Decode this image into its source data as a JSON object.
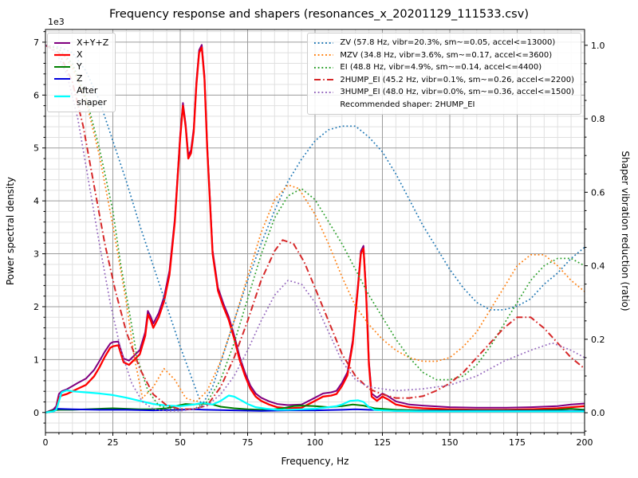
{
  "title": "Frequency response and shapers (resonances_x_20201129_111533.csv)",
  "chart_data": {
    "type": "line",
    "title": "Frequency response and shapers (resonances_x_20201129_111533.csv)",
    "xlabel": "Frequency, Hz",
    "ylabel_left": "Power spectral density",
    "ylabel_right": "Shaper vibration reduction (ratio)",
    "y_left_offset_text": "1e3",
    "xlim": [
      0,
      200
    ],
    "ylim_left": [
      -0.38,
      7.24
    ],
    "ylim_right": [
      -0.054,
      1.043
    ],
    "x_major_ticks": [
      0,
      25,
      50,
      75,
      100,
      125,
      150,
      175,
      200
    ],
    "x_minor_step": 5,
    "y_left_major_ticks": [
      0,
      1,
      2,
      3,
      4,
      5,
      6,
      7
    ],
    "y_left_minor_step": 0.2,
    "y_right_major_ticks": [
      "0.0",
      "0.2",
      "0.4",
      "0.6",
      "0.8",
      "1.0"
    ],
    "y_right_minor_step": 0.05,
    "grid": "major+minor on left axis",
    "legend_left_position": "upper left",
    "legend_right_position": "upper right",
    "recommended_note": "Recommended shaper: 2HUMP_EI",
    "series": [
      {
        "name": "X+Y+Z",
        "axis": "left",
        "color": "#800080",
        "style": "solid",
        "width": 2,
        "x": [
          0,
          3,
          4,
          5,
          6,
          8,
          10,
          12,
          15,
          18,
          20,
          22,
          24,
          25,
          27,
          29,
          31,
          33,
          35,
          37,
          38,
          39,
          40,
          42,
          44,
          46,
          48,
          50,
          51,
          52,
          53,
          54,
          55,
          56,
          57,
          58,
          59,
          60,
          61,
          62,
          64,
          66,
          68,
          70,
          72,
          74,
          76,
          78,
          80,
          83,
          86,
          90,
          95,
          100,
          103,
          106,
          108,
          110,
          112,
          114,
          116,
          117,
          118,
          119,
          120,
          121,
          123,
          125,
          127,
          130,
          135,
          140,
          150,
          160,
          170,
          180,
          190,
          195,
          200
        ],
        "y": [
          0,
          0.06,
          0.12,
          0.35,
          0.4,
          0.44,
          0.5,
          0.56,
          0.64,
          0.8,
          0.97,
          1.15,
          1.3,
          1.33,
          1.34,
          1.02,
          0.98,
          1.08,
          1.18,
          1.52,
          1.92,
          1.82,
          1.68,
          1.88,
          2.18,
          2.68,
          3.66,
          5.26,
          5.85,
          5.45,
          4.86,
          4.96,
          5.36,
          6.26,
          6.85,
          6.95,
          6.36,
          5.06,
          4.06,
          3.06,
          2.36,
          2.06,
          1.81,
          1.46,
          1.06,
          0.76,
          0.51,
          0.36,
          0.28,
          0.21,
          0.16,
          0.14,
          0.15,
          0.28,
          0.36,
          0.38,
          0.41,
          0.56,
          0.76,
          1.36,
          2.45,
          3.05,
          3.15,
          2.26,
          0.96,
          0.36,
          0.28,
          0.36,
          0.31,
          0.21,
          0.15,
          0.13,
          0.1,
          0.09,
          0.09,
          0.1,
          0.12,
          0.15,
          0.17
        ]
      },
      {
        "name": "X",
        "axis": "left",
        "color": "#ff0000",
        "style": "solid",
        "width": 2.3,
        "x": [
          0,
          3,
          4,
          5,
          6,
          8,
          10,
          12,
          15,
          18,
          20,
          22,
          24,
          25,
          27,
          29,
          31,
          33,
          35,
          37,
          38,
          39,
          40,
          42,
          44,
          46,
          48,
          50,
          51,
          52,
          53,
          54,
          55,
          56,
          57,
          58,
          59,
          60,
          61,
          62,
          64,
          66,
          68,
          70,
          72,
          74,
          76,
          78,
          80,
          83,
          86,
          90,
          95,
          100,
          103,
          106,
          108,
          110,
          112,
          114,
          116,
          117,
          118,
          119,
          120,
          121,
          123,
          125,
          127,
          130,
          135,
          140,
          150,
          160,
          170,
          180,
          190,
          195,
          200
        ],
        "y": [
          0,
          0.02,
          0.05,
          0.28,
          0.32,
          0.35,
          0.4,
          0.45,
          0.52,
          0.68,
          0.85,
          1.05,
          1.22,
          1.25,
          1.27,
          0.95,
          0.9,
          1.0,
          1.1,
          1.45,
          1.85,
          1.75,
          1.6,
          1.8,
          2.1,
          2.6,
          3.6,
          5.2,
          5.8,
          5.4,
          4.8,
          4.9,
          5.3,
          6.2,
          6.8,
          6.9,
          6.3,
          5.0,
          4.0,
          3.0,
          2.3,
          2.0,
          1.75,
          1.4,
          1.0,
          0.7,
          0.45,
          0.3,
          0.22,
          0.15,
          0.1,
          0.08,
          0.09,
          0.22,
          0.3,
          0.32,
          0.35,
          0.5,
          0.7,
          1.3,
          2.4,
          3.0,
          3.1,
          2.2,
          0.9,
          0.3,
          0.22,
          0.3,
          0.25,
          0.15,
          0.1,
          0.08,
          0.06,
          0.05,
          0.05,
          0.06,
          0.08,
          0.1,
          0.12
        ]
      },
      {
        "name": "Y",
        "axis": "left",
        "color": "#008000",
        "style": "solid",
        "width": 2,
        "x": [
          0,
          3,
          5,
          10,
          15,
          20,
          25,
          30,
          35,
          40,
          45,
          48,
          52,
          55,
          58,
          62,
          65,
          70,
          75,
          80,
          85,
          88,
          92,
          95,
          100,
          105,
          110,
          114,
          118,
          122,
          130,
          140,
          150,
          160,
          170,
          180,
          190,
          195,
          200
        ],
        "y": [
          0,
          0.04,
          0.05,
          0.05,
          0.06,
          0.07,
          0.08,
          0.07,
          0.06,
          0.06,
          0.08,
          0.12,
          0.16,
          0.15,
          0.17,
          0.15,
          0.11,
          0.08,
          0.06,
          0.05,
          0.06,
          0.08,
          0.12,
          0.13,
          0.12,
          0.1,
          0.12,
          0.15,
          0.13,
          0.08,
          0.05,
          0.04,
          0.04,
          0.04,
          0.04,
          0.04,
          0.05,
          0.07,
          0.05
        ]
      },
      {
        "name": "Z",
        "axis": "left",
        "color": "#0000dd",
        "style": "solid",
        "width": 2,
        "x": [
          0,
          3,
          4,
          10,
          20,
          30,
          40,
          50,
          55,
          60,
          70,
          80,
          90,
          100,
          110,
          115,
          120,
          130,
          140,
          150,
          160,
          170,
          180,
          190,
          200
        ],
        "y": [
          0,
          0.02,
          0.07,
          0.06,
          0.05,
          0.05,
          0.04,
          0.05,
          0.06,
          0.05,
          0.04,
          0.03,
          0.04,
          0.04,
          0.05,
          0.06,
          0.05,
          0.03,
          0.03,
          0.03,
          0.03,
          0.03,
          0.03,
          0.03,
          0.03
        ]
      },
      {
        "name": "After shaper",
        "axis": "left",
        "color": "#00ffff",
        "style": "solid",
        "width": 2.2,
        "x": [
          0,
          3,
          4,
          6,
          8,
          10,
          15,
          20,
          25,
          30,
          35,
          40,
          45,
          50,
          55,
          58,
          60,
          62,
          65,
          68,
          70,
          73,
          75,
          78,
          82,
          86,
          90,
          95,
          100,
          105,
          108,
          110,
          113,
          116,
          118,
          120,
          122,
          125,
          130,
          140,
          150,
          160,
          170,
          180,
          190,
          200
        ],
        "y": [
          0,
          0.02,
          0.05,
          0.38,
          0.42,
          0.4,
          0.38,
          0.36,
          0.33,
          0.28,
          0.22,
          0.16,
          0.13,
          0.12,
          0.15,
          0.18,
          0.17,
          0.15,
          0.22,
          0.32,
          0.3,
          0.22,
          0.16,
          0.1,
          0.07,
          0.05,
          0.05,
          0.06,
          0.07,
          0.1,
          0.12,
          0.15,
          0.22,
          0.23,
          0.2,
          0.1,
          0.05,
          0.04,
          0.03,
          0.02,
          0.02,
          0.02,
          0.02,
          0.02,
          0.02,
          0.02
        ]
      },
      {
        "name": "ZV",
        "axis": "right",
        "color": "#1f77b4",
        "style": "dotted",
        "width": 1.7,
        "x": [
          0,
          5,
          10,
          15,
          20,
          25,
          30,
          35,
          40,
          45,
          50,
          54,
          58,
          62,
          66,
          70,
          75,
          80,
          85,
          90,
          95,
          100,
          105,
          110,
          115,
          120,
          125,
          130,
          135,
          140,
          145,
          150,
          155,
          160,
          165,
          170,
          175,
          180,
          185,
          190,
          195,
          200
        ],
        "y": [
          1.0,
          0.995,
          0.98,
          0.93,
          0.85,
          0.74,
          0.63,
          0.51,
          0.4,
          0.29,
          0.18,
          0.1,
          0.02,
          0.07,
          0.16,
          0.25,
          0.36,
          0.46,
          0.55,
          0.63,
          0.69,
          0.74,
          0.77,
          0.78,
          0.78,
          0.75,
          0.71,
          0.65,
          0.58,
          0.51,
          0.45,
          0.39,
          0.34,
          0.3,
          0.28,
          0.28,
          0.29,
          0.31,
          0.35,
          0.38,
          0.42,
          0.45
        ]
      },
      {
        "name": "MZV",
        "axis": "right",
        "color": "#ff7f0e",
        "style": "dotted",
        "width": 1.7,
        "x": [
          0,
          5,
          10,
          15,
          20,
          25,
          30,
          33,
          36,
          40,
          44,
          48,
          52,
          56,
          60,
          65,
          70,
          75,
          80,
          85,
          90,
          94,
          100,
          105,
          110,
          115,
          120,
          125,
          130,
          135,
          140,
          145,
          150,
          155,
          160,
          165,
          170,
          175,
          180,
          185,
          190,
          195,
          200
        ],
        "y": [
          1.0,
          0.99,
          0.94,
          0.85,
          0.7,
          0.51,
          0.3,
          0.15,
          0.04,
          0.07,
          0.12,
          0.09,
          0.04,
          0.03,
          0.06,
          0.14,
          0.25,
          0.37,
          0.49,
          0.58,
          0.62,
          0.61,
          0.54,
          0.46,
          0.37,
          0.29,
          0.24,
          0.2,
          0.17,
          0.15,
          0.14,
          0.14,
          0.15,
          0.18,
          0.22,
          0.28,
          0.34,
          0.4,
          0.43,
          0.43,
          0.4,
          0.36,
          0.33
        ]
      },
      {
        "name": "EI",
        "axis": "right",
        "color": "#2ca02c",
        "style": "dotted",
        "width": 1.7,
        "x": [
          0,
          5,
          10,
          15,
          20,
          25,
          28,
          31,
          34,
          38,
          42,
          46,
          50,
          55,
          60,
          65,
          70,
          75,
          80,
          85,
          90,
          95,
          100,
          105,
          110,
          115,
          120,
          125,
          130,
          135,
          140,
          145,
          150,
          155,
          160,
          165,
          170,
          175,
          180,
          185,
          190,
          195,
          200
        ],
        "y": [
          1.0,
          0.99,
          0.95,
          0.86,
          0.72,
          0.55,
          0.4,
          0.28,
          0.15,
          0.06,
          0.02,
          0.01,
          0.01,
          0.01,
          0.03,
          0.09,
          0.19,
          0.31,
          0.43,
          0.53,
          0.59,
          0.61,
          0.58,
          0.52,
          0.46,
          0.39,
          0.32,
          0.26,
          0.2,
          0.15,
          0.11,
          0.09,
          0.09,
          0.1,
          0.13,
          0.18,
          0.24,
          0.3,
          0.36,
          0.4,
          0.42,
          0.42,
          0.4
        ]
      },
      {
        "name": "2HUMP_EI",
        "axis": "right",
        "color": "#d62728",
        "style": "dashdot",
        "width": 2,
        "x": [
          0,
          5,
          10,
          14,
          18,
          22,
          26,
          30,
          35,
          40,
          45,
          50,
          55,
          60,
          65,
          70,
          75,
          80,
          85,
          88,
          92,
          96,
          100,
          105,
          110,
          115,
          120,
          125,
          130,
          135,
          140,
          145,
          150,
          155,
          160,
          165,
          170,
          175,
          180,
          185,
          190,
          195,
          200
        ],
        "y": [
          1.0,
          0.98,
          0.9,
          0.78,
          0.62,
          0.46,
          0.33,
          0.22,
          0.12,
          0.05,
          0.02,
          0.01,
          0.01,
          0.02,
          0.07,
          0.15,
          0.25,
          0.36,
          0.44,
          0.47,
          0.46,
          0.41,
          0.34,
          0.25,
          0.16,
          0.1,
          0.065,
          0.05,
          0.04,
          0.04,
          0.045,
          0.06,
          0.08,
          0.11,
          0.15,
          0.19,
          0.23,
          0.26,
          0.26,
          0.23,
          0.19,
          0.15,
          0.12
        ]
      },
      {
        "name": "3HUMP_EI",
        "axis": "right",
        "color": "#9467bd",
        "style": "dotted",
        "width": 1.7,
        "x": [
          0,
          4,
          8,
          12,
          16,
          20,
          24,
          28,
          32,
          36,
          40,
          45,
          50,
          55,
          60,
          65,
          70,
          75,
          80,
          85,
          90,
          95,
          100,
          105,
          110,
          115,
          120,
          125,
          130,
          140,
          150,
          160,
          170,
          180,
          188,
          195,
          200
        ],
        "y": [
          1.0,
          0.98,
          0.92,
          0.8,
          0.63,
          0.46,
          0.3,
          0.17,
          0.08,
          0.03,
          0.01,
          0.005,
          0.005,
          0.01,
          0.02,
          0.05,
          0.1,
          0.17,
          0.25,
          0.32,
          0.36,
          0.35,
          0.3,
          0.22,
          0.14,
          0.09,
          0.07,
          0.065,
          0.06,
          0.065,
          0.075,
          0.1,
          0.14,
          0.17,
          0.19,
          0.17,
          0.15
        ]
      }
    ],
    "legend_left": [
      {
        "label": "X+Y+Z",
        "series": "X+Y+Z"
      },
      {
        "label": "X",
        "series": "X"
      },
      {
        "label": "Y",
        "series": "Y"
      },
      {
        "label": "Z",
        "series": "Z"
      },
      {
        "label": "After\nshaper",
        "series": "After shaper"
      }
    ],
    "legend_right": [
      {
        "label": "ZV (57.8 Hz, vibr=20.3%, sm~=0.05, accel<=13000)",
        "series": "ZV"
      },
      {
        "label": "MZV (34.8 Hz, vibr=3.6%, sm~=0.17, accel<=3600)",
        "series": "MZV"
      },
      {
        "label": "EI (48.8 Hz, vibr=4.9%, sm~=0.14, accel<=4400)",
        "series": "EI"
      },
      {
        "label": "2HUMP_EI (45.2 Hz, vibr=0.1%, sm~=0.26, accel<=2200)",
        "series": "2HUMP_EI"
      },
      {
        "label": "3HUMP_EI (48.0 Hz, vibr=0.0%, sm~=0.36, accel<=1500)",
        "series": "3HUMP_EI"
      }
    ]
  }
}
